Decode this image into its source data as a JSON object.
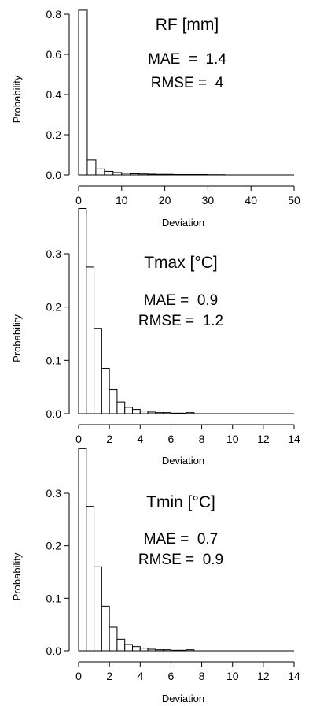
{
  "chart_data": [
    {
      "type": "bar",
      "title": "RF [mm]",
      "stats": {
        "mae": "MAE  =  1.4",
        "rmse": "RMSE =  4"
      },
      "xlabel": "Deviation",
      "ylabel": "Probability",
      "xlim": [
        0,
        50
      ],
      "ylim": [
        0,
        0.8
      ],
      "xticks": [
        "0",
        "10",
        "20",
        "30",
        "40",
        "50"
      ],
      "yticks": [
        "0.0",
        "0.2",
        "0.4",
        "0.6",
        "0.8"
      ],
      "bin_width": 2,
      "values": [
        0.82,
        0.075,
        0.03,
        0.018,
        0.012,
        0.008,
        0.006,
        0.005,
        0.004,
        0.003,
        0.003,
        0.002,
        0.002,
        0.002,
        0.002,
        0.001,
        0.001
      ],
      "grid": false,
      "legend": "none"
    },
    {
      "type": "bar",
      "title": "Tmax [°C]",
      "stats": {
        "mae": "MAE =  0.9",
        "rmse": "RMSE =  1.2"
      },
      "xlabel": "Deviation",
      "ylabel": "Probability",
      "xlim": [
        0,
        14
      ],
      "ylim": [
        0,
        0.3
      ],
      "xticks": [
        "0",
        "2",
        "4",
        "6",
        "8",
        "10",
        "12",
        "14"
      ],
      "yticks": [
        "0.0",
        "0.1",
        "0.2",
        "0.3"
      ],
      "bin_width": 0.5,
      "values": [
        0.385,
        0.275,
        0.16,
        0.085,
        0.045,
        0.022,
        0.012,
        0.008,
        0.005,
        0.003,
        0.002,
        0.002,
        0.001,
        0.001,
        0.002
      ],
      "grid": false,
      "legend": "none"
    },
    {
      "type": "bar",
      "title": "Tmin [°C]",
      "stats": {
        "mae": "MAE =  0.7",
        "rmse": "RMSE =  0.9"
      },
      "xlabel": "Deviation",
      "ylabel": "Probability",
      "xlim": [
        0,
        14
      ],
      "ylim": [
        0,
        0.3
      ],
      "xticks": [
        "0",
        "2",
        "4",
        "6",
        "8",
        "10",
        "12",
        "14"
      ],
      "yticks": [
        "0.0",
        "0.1",
        "0.2",
        "0.3"
      ],
      "bin_width": 0.5,
      "values": [
        0.385,
        0.275,
        0.16,
        0.085,
        0.045,
        0.022,
        0.012,
        0.008,
        0.005,
        0.003,
        0.002,
        0.002,
        0.001,
        0.001,
        0.002
      ],
      "grid": false,
      "legend": "none"
    }
  ]
}
